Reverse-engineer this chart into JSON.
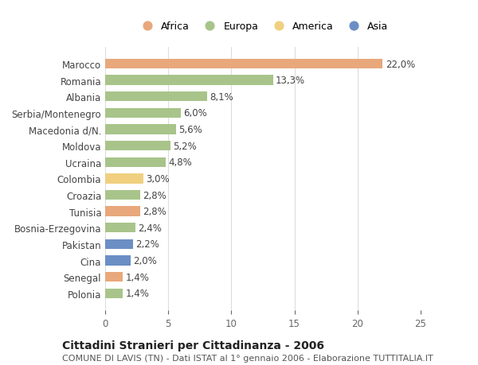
{
  "categories": [
    "Polonia",
    "Senegal",
    "Cina",
    "Pakistan",
    "Bosnia-Erzegovina",
    "Tunisia",
    "Croazia",
    "Colombia",
    "Ucraina",
    "Moldova",
    "Macedonia d/N.",
    "Serbia/Montenegro",
    "Albania",
    "Romania",
    "Marocco"
  ],
  "values": [
    1.4,
    1.4,
    2.0,
    2.2,
    2.4,
    2.8,
    2.8,
    3.0,
    4.8,
    5.2,
    5.6,
    6.0,
    8.1,
    13.3,
    22.0
  ],
  "labels": [
    "1,4%",
    "1,4%",
    "2,0%",
    "2,2%",
    "2,4%",
    "2,8%",
    "2,8%",
    "3,0%",
    "4,8%",
    "5,2%",
    "5,6%",
    "6,0%",
    "8,1%",
    "13,3%",
    "22,0%"
  ],
  "continents": [
    "Europa",
    "Africa",
    "Asia",
    "Asia",
    "Europa",
    "Africa",
    "Europa",
    "America",
    "Europa",
    "Europa",
    "Europa",
    "Europa",
    "Europa",
    "Europa",
    "Africa"
  ],
  "colors": {
    "Africa": "#E8A87C",
    "Europa": "#A8C48A",
    "America": "#F0D080",
    "Asia": "#6B8EC4"
  },
  "legend_order": [
    "Africa",
    "Europa",
    "America",
    "Asia"
  ],
  "xlim": [
    0,
    25
  ],
  "xticks": [
    0,
    5,
    10,
    15,
    20,
    25
  ],
  "title": "Cittadini Stranieri per Cittadinanza - 2006",
  "subtitle": "COMUNE DI LAVIS (TN) - Dati ISTAT al 1° gennaio 2006 - Elaborazione TUTTITALIA.IT",
  "background_color": "#ffffff",
  "bar_height": 0.6,
  "grid_color": "#dddddd",
  "label_fontsize": 8.5,
  "tick_fontsize": 8.5,
  "title_fontsize": 10,
  "subtitle_fontsize": 8
}
